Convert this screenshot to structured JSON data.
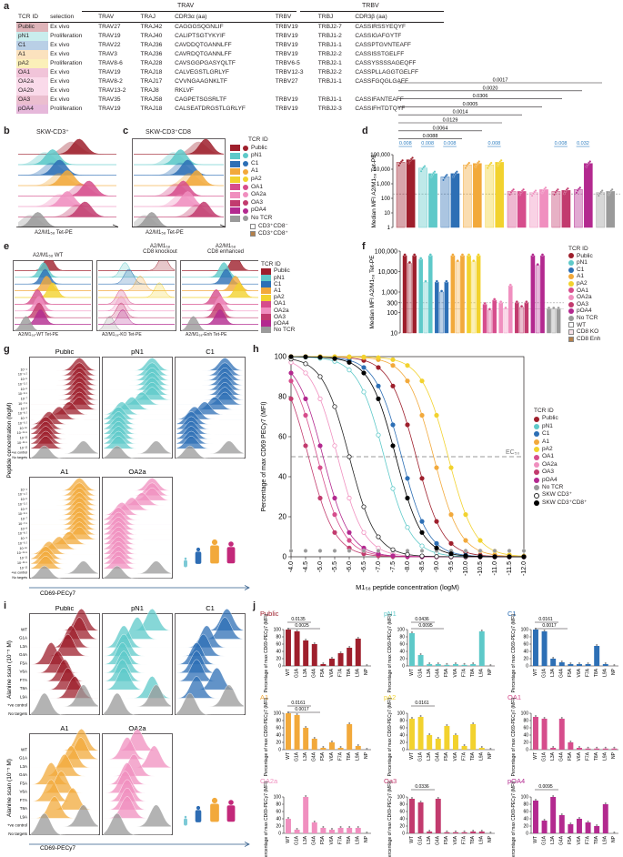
{
  "panel_letters": [
    "a",
    "b",
    "c",
    "d",
    "e",
    "f",
    "g",
    "h",
    "i",
    "j"
  ],
  "colors": {
    "Public": "#9e1f2c",
    "pN1": "#5ec9c9",
    "C1": "#2d6fb5",
    "A1": "#f2a93b",
    "pA2": "#f2d22e",
    "OA1": "#d64d8c",
    "OA2a": "#f08fbf",
    "OA3": "#c23b6e",
    "pOA4": "#b3298f",
    "NoTCR": "#9a9a9a"
  },
  "table": {
    "group_trav": "TRAV",
    "group_trbv": "TRBV",
    "headers": [
      "TCR ID",
      "selection",
      "TRAV",
      "TRAJ",
      "CDR3α (aa)",
      "TRBV",
      "TRBJ",
      "CDR3β (aa)"
    ],
    "rows": [
      [
        "Public",
        "Ex vivo",
        "TRAV27",
        "TRAJ42",
        "CAGGGSQGNLIF",
        "TRBV19",
        "TRBJ2-7",
        "CASSIRSSYEQYF"
      ],
      [
        "pN1",
        "Proliferation",
        "TRAV19",
        "TRAJ40",
        "CALIPTSGTYKYIF",
        "TRBV19",
        "TRBJ1-2",
        "CASSIGAFGYTF"
      ],
      [
        "C1",
        "Ex vivo",
        "TRAV22",
        "TRAJ36",
        "CAVDDQTGANNLFF",
        "TRBV19",
        "TRBJ1-1",
        "CASSPTGVNTEAFF"
      ],
      [
        "A1",
        "Ex vivo",
        "TRAV3",
        "TRAJ36",
        "CAVRDQTGANNLFF",
        "TRBV19",
        "TRBJ2-2",
        "CASSISSTGELFF"
      ],
      [
        "pA2",
        "Proliferation",
        "TRAV8-6",
        "TRAJ28",
        "CAVSGGPGASYQLTF",
        "TRBV6-5",
        "TRBJ2-1",
        "CASSYSSSSAGEQFF"
      ],
      [
        "OA1",
        "Ex vivo",
        "TRAV19",
        "TRAJ18",
        "CALVEGSTLGRLYF",
        "TRBV12-3",
        "TRBJ2-2",
        "CASSPLLAGGTGELFF"
      ],
      [
        "OA2a",
        "Ex vivo",
        "TRAV8-2",
        "TRAJ17",
        "CVVNGAAGNKLTF",
        "TRBV27",
        "TRBJ1-1",
        "CASSFGQGLGAFF"
      ],
      [
        "OA2b",
        "Ex vivo",
        "TRAV13-2",
        "TRAJ8",
        "RKLVF",
        "",
        "",
        ""
      ],
      [
        "OA3",
        "Ex vivo",
        "TRAV35",
        "TRAJ58",
        "CAGPETSGSRLTF",
        "TRBV19",
        "TRBJ1-1",
        "CASSIFANTEAFF"
      ],
      [
        "pOA4",
        "Proliferation",
        "TRAV19",
        "TRAJ18",
        "CALSEATDRGSTLGRLYF",
        "TRBV19",
        "TRBJ2-3",
        "CASSIFHTDTQYF"
      ]
    ]
  },
  "panel_b": {
    "title": "SKW-CD3⁺",
    "xlabel": "A2/M1₅₈ Tet-PE"
  },
  "panel_c": {
    "title": "SKW-CD3⁺CD8",
    "xlabel": "A2/M1₅₈ Tet-PE"
  },
  "legend_bc": {
    "title": "TCR ID",
    "items": [
      "Public",
      "pN1",
      "C1",
      "A1",
      "pA2",
      "OA1",
      "OA2a",
      "OA3",
      "pOA4",
      "No TCR",
      "CD3⁺CD8⁻",
      "CD3⁺CD8⁺"
    ]
  },
  "panel_d": {
    "ylabel": "Median MFI A2/M1₅₈ Tet-PE",
    "yticks": [
      "100,000",
      "10,000",
      "1,000",
      "100",
      "10",
      "1"
    ],
    "pvalues_top": [
      "0.0017",
      "0.0020",
      "0.0306",
      "0.0005",
      "0.0014",
      "0.0129",
      "0.0064",
      "0.0088"
    ],
    "pvalues_blue": [
      "0.008",
      "0.008",
      "0.008",
      "0.008",
      "0.008",
      "0.032"
    ]
  },
  "panel_e": {
    "titles": [
      "A2/M1₅₈ WT",
      "A2/M1₅₈\nCD8 knockout",
      "A2/M1₅₈\nCD8 enhanced"
    ],
    "title_ko": "A2/M1₅₈ CD8 knockout",
    "title_enh": "A2/M1₅₈ CD8 enhanced",
    "title_ko_l1": "A2/M1₅₈",
    "title_ko_l2": "CD8 knockout",
    "title_enh_l1": "A2/M1₅₈",
    "title_enh_l2": "CD8 enhanced",
    "xlabels": [
      "A2/M1₅₈-WT Tet-PE",
      "A2/M1₅₈-KO Tet-PE",
      "A2/M1₅₈-Enh Tet-PE"
    ],
    "legend_title": "TCR ID",
    "legend": [
      "Public",
      "pN1",
      "C1",
      "A1",
      "pA2",
      "OA1",
      "OA2a",
      "OA3",
      "pOA4",
      "No TCR"
    ]
  },
  "panel_f": {
    "ylabel": "Median MFI A2/M1₅₈ Tet-PE",
    "yticks": [
      "100,000",
      "10,000",
      "1,000",
      "300",
      "100",
      "10"
    ],
    "legend_title": "TCR ID",
    "legend": [
      "Public",
      "pN1",
      "C1",
      "A1",
      "pA2",
      "OA1",
      "OA2a",
      "OA3",
      "pOA4",
      "No TCR",
      "WT",
      "CD8 KO",
      "CD8 Enh"
    ]
  },
  "panel_g": {
    "titles": [
      "Public",
      "pN1",
      "C1",
      "A1",
      "OA2a"
    ],
    "ylabel": "Peptide concentration (logM)",
    "yticks": [
      "10⁻⁴",
      "10⁻⁴·⁵",
      "10⁻⁵",
      "10⁻⁵·⁵",
      "10⁻⁶",
      "10⁻⁶·⁵",
      "10⁻⁷",
      "10⁻⁷·⁵",
      "10⁻⁸",
      "10⁻⁸·⁵",
      "10⁻⁹",
      "10⁻⁹·⁵",
      "10⁻¹⁰",
      "10⁻¹⁰·⁵",
      "10⁻¹¹",
      "10⁻¹¹·⁵",
      "10⁻¹²",
      "+ve control",
      "No targets"
    ],
    "xlabel": "CD69-PECy7"
  },
  "panel_h": {
    "ylabel": "Percentage of max CD69 PECy7 (MFI)",
    "xlabel": "M1₅₈ peptide concentration (logM)",
    "ec50": "EC₅₀",
    "xticks": [
      "-4.0",
      "-4.5",
      "-5.0",
      "-5.5",
      "-6.0",
      "-6.5",
      "-7.0",
      "-7.5",
      "-8.0",
      "-8.5",
      "-9.0",
      "-9.5",
      "-10.0",
      "-10.5",
      "-11.0",
      "-11.5",
      "-12.0"
    ],
    "yticks": [
      "0",
      "20",
      "40",
      "60",
      "80",
      "100"
    ],
    "legend_title": "TCR ID",
    "legend": [
      "Public",
      "pN1",
      "C1",
      "A1",
      "pA2",
      "OA1",
      "OA2a",
      "OA3",
      "pOA4",
      "No TCR",
      "SKW CD3⁺",
      "SKW CD3⁺CD8⁺"
    ]
  },
  "chart_data": [
    {
      "type": "line",
      "title": "Panel h: CD69 activation vs M1 peptide concentration",
      "xlabel": "M1₅₈ peptide concentration (logM)",
      "ylabel": "Percentage of max CD69 PECy7 (MFI)",
      "xlim": [
        -4.0,
        -12.0
      ],
      "ylim": [
        0,
        100
      ],
      "ec50_line": 50,
      "series": [
        {
          "name": "Public",
          "ec50": -8.3
        },
        {
          "name": "pN1",
          "ec50": -7.2
        },
        {
          "name": "C1",
          "ec50": -7.8
        },
        {
          "name": "A1",
          "ec50": -8.9
        },
        {
          "name": "pA2",
          "ec50": -9.4
        },
        {
          "name": "OA1",
          "ec50": -4.9
        },
        {
          "name": "OA2a",
          "ec50": -5.6
        },
        {
          "name": "OA3",
          "ec50": -4.6
        },
        {
          "name": "pOA4",
          "ec50": -5.1
        },
        {
          "name": "No TCR",
          "ec50": null
        },
        {
          "name": "SKW CD3⁺",
          "ec50": -6.0
        },
        {
          "name": "SKW CD3⁺CD8⁺",
          "ec50": -7.6
        }
      ]
    },
    {
      "type": "bar",
      "title": "Panel d: Median MFI A2/M1₅₈ Tet-PE",
      "ylabel": "Median MFI A2/M1₅₈ Tet-PE",
      "scale": "log",
      "categories": [
        "Public",
        "pN1",
        "C1",
        "A1",
        "pA2",
        "OA1",
        "OA2a",
        "OA3",
        "pOA4",
        "No TCR"
      ],
      "series": [
        {
          "name": "CD3⁺CD8⁻",
          "values": [
            30000,
            12000,
            3000,
            20000,
            20000,
            300,
            250,
            300,
            400,
            250
          ]
        },
        {
          "name": "CD3⁺CD8⁺",
          "values": [
            45000,
            5000,
            5000,
            25000,
            30000,
            300,
            400,
            350,
            25000,
            300
          ]
        }
      ]
    },
    {
      "type": "bar",
      "title": "Panel f: Median MFI A2/M1₅₈ Tet-PE (WT / CD8 KO / CD8 Enh)",
      "ylabel": "Median MFI A2/M1₅₈ Tet-PE",
      "scale": "log",
      "categories": [
        "Public",
        "pN1",
        "C1",
        "A1",
        "pA2",
        "OA1",
        "OA2a",
        "OA3",
        "pOA4",
        "No TCR"
      ],
      "series": [
        {
          "name": "WT",
          "values": [
            60000,
            40000,
            3000,
            60000,
            60000,
            250,
            300,
            300,
            60000,
            150
          ]
        },
        {
          "name": "CD8 KO",
          "values": [
            25000,
            3000,
            1000,
            30000,
            30000,
            130,
            150,
            180,
            20000,
            150
          ]
        },
        {
          "name": "CD8 Enh",
          "values": [
            60000,
            60000,
            3000,
            60000,
            60000,
            400,
            2000,
            300,
            60000,
            150
          ]
        }
      ]
    },
    {
      "type": "bar",
      "title": "Panel j: Alanine scan, percentage of max CD69-PECy7 (MFI)",
      "categories": [
        "WT",
        "G1A",
        "L3A",
        "G4A",
        "F5A",
        "V6A",
        "F7A",
        "T8A",
        "L9A",
        "NP"
      ],
      "ylim": [
        0,
        100
      ],
      "series": [
        {
          "name": "Public",
          "values": [
            100,
            95,
            70,
            60,
            5,
            20,
            35,
            50,
            75,
            0
          ]
        },
        {
          "name": "pN1",
          "values": [
            90,
            30,
            5,
            5,
            3,
            5,
            3,
            5,
            95,
            0
          ]
        },
        {
          "name": "C1",
          "values": [
            100,
            95,
            20,
            10,
            5,
            5,
            5,
            55,
            5,
            0
          ]
        },
        {
          "name": "A1",
          "values": [
            100,
            95,
            60,
            30,
            5,
            20,
            5,
            70,
            10,
            0
          ]
        },
        {
          "name": "pA2",
          "values": [
            85,
            90,
            40,
            30,
            65,
            40,
            10,
            70,
            5,
            0
          ]
        },
        {
          "name": "OA1",
          "values": [
            90,
            85,
            5,
            85,
            20,
            5,
            3,
            3,
            3,
            3
          ]
        },
        {
          "name": "OA2a",
          "values": [
            40,
            10,
            100,
            30,
            15,
            10,
            15,
            15,
            15,
            0
          ]
        },
        {
          "name": "OA3",
          "values": [
            95,
            85,
            5,
            95,
            3,
            3,
            3,
            5,
            5,
            0
          ]
        },
        {
          "name": "pOA4",
          "values": [
            90,
            35,
            100,
            50,
            25,
            40,
            30,
            20,
            80,
            0
          ]
        }
      ]
    }
  ],
  "panel_i": {
    "titles": [
      "Public",
      "pN1",
      "C1",
      "A1",
      "OA2a"
    ],
    "ylabel": "Alanine scan (10⁻⁵ M)",
    "yticks": [
      "WT",
      "G1A",
      "L3A",
      "G4A",
      "F5A",
      "V6A",
      "F7A",
      "T8A",
      "L9A",
      "+ve control",
      "No targets"
    ],
    "xlabel": "CD69-PECy7"
  },
  "panel_j": {
    "ylabel": "Percentage of max CD69-PECy7 (MFI)",
    "yticks": [
      "100",
      "80",
      "60",
      "40",
      "20",
      "0"
    ],
    "panels": [
      {
        "title": "Public",
        "pvals": [
          "0.0135",
          "0.0025"
        ]
      },
      {
        "title": "pN1",
        "pvals": [
          "0.0436",
          "0.0095"
        ]
      },
      {
        "title": "C1",
        "pvals": [
          "0.0161",
          "0.0017"
        ]
      },
      {
        "title": "A1",
        "pvals": [
          "0.0161",
          "0.0017"
        ]
      },
      {
        "title": "pA2",
        "pvals": [
          "0.0161"
        ]
      },
      {
        "title": "OA1",
        "pvals": []
      },
      {
        "title": "OA2a",
        "pvals": []
      },
      {
        "title": "Oa3",
        "pvals": [
          "0.0336"
        ]
      },
      {
        "title": "pOA4",
        "pvals": [
          "0.0095"
        ]
      }
    ]
  }
}
